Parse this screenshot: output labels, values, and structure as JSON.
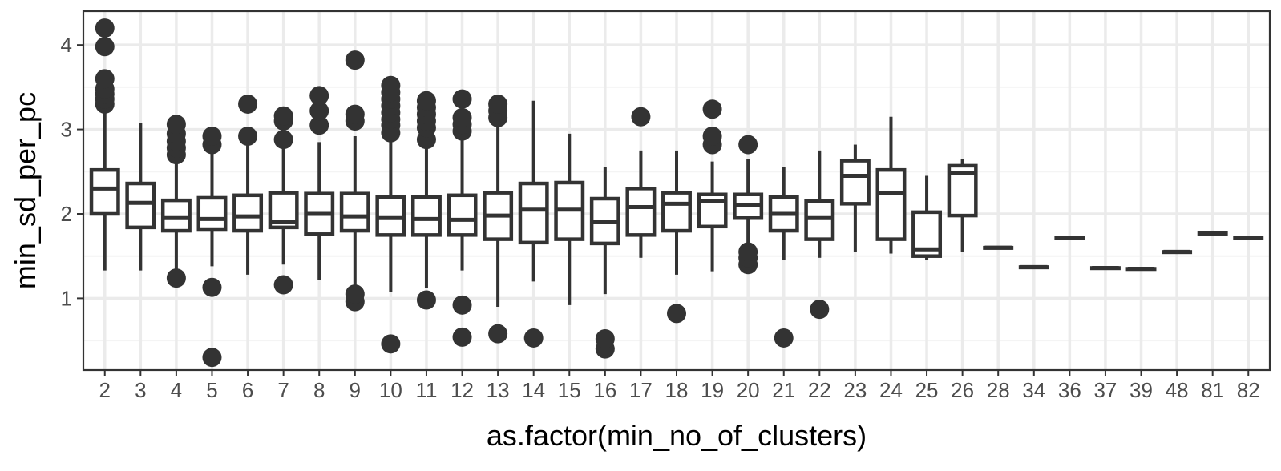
{
  "chart_data": {
    "type": "boxplot",
    "xlabel": "as.factor(min_no_of_clusters)",
    "ylabel": "min_sd_per_pc",
    "ylim": [
      0.15,
      4.4
    ],
    "yticks": [
      1,
      2,
      3,
      4
    ],
    "grid": true,
    "colors": {
      "box": "#333333",
      "fill": "#ffffff",
      "grid_major": "#ebebeb",
      "grid_minor": "#f4f4f4",
      "border": "#333333"
    },
    "categories": [
      "2",
      "3",
      "4",
      "5",
      "6",
      "7",
      "8",
      "9",
      "10",
      "11",
      "12",
      "13",
      "14",
      "15",
      "16",
      "17",
      "18",
      "19",
      "20",
      "21",
      "22",
      "23",
      "24",
      "25",
      "26",
      "28",
      "34",
      "36",
      "37",
      "39",
      "48",
      "81",
      "82"
    ],
    "boxes": [
      {
        "min": 1.33,
        "q1": 2.0,
        "median": 2.3,
        "q3": 2.52,
        "max": 3.28,
        "outliers": [
          3.3,
          3.36,
          3.42,
          3.48,
          3.6,
          3.98,
          4.2
        ]
      },
      {
        "min": 1.33,
        "q1": 1.84,
        "median": 2.13,
        "q3": 2.36,
        "max": 3.08,
        "outliers": []
      },
      {
        "min": 1.3,
        "q1": 1.8,
        "median": 1.95,
        "q3": 2.16,
        "max": 2.65,
        "outliers": [
          1.24,
          2.7,
          2.78,
          2.86,
          2.95,
          3.06
        ]
      },
      {
        "min": 1.38,
        "q1": 1.81,
        "median": 1.94,
        "q3": 2.19,
        "max": 2.72,
        "outliers": [
          0.3,
          1.13,
          2.82,
          2.92
        ]
      },
      {
        "min": 1.28,
        "q1": 1.8,
        "median": 1.97,
        "q3": 2.22,
        "max": 2.85,
        "outliers": [
          2.92,
          3.3
        ]
      },
      {
        "min": 1.4,
        "q1": 1.84,
        "median": 1.9,
        "q3": 2.25,
        "max": 2.8,
        "outliers": [
          1.16,
          2.88,
          3.1,
          3.16
        ]
      },
      {
        "min": 1.22,
        "q1": 1.76,
        "median": 2.0,
        "q3": 2.24,
        "max": 2.85,
        "outliers": [
          3.05,
          3.22,
          3.4
        ]
      },
      {
        "min": 1.15,
        "q1": 1.8,
        "median": 1.97,
        "q3": 2.24,
        "max": 2.92,
        "outliers": [
          0.96,
          1.05,
          3.1,
          3.18,
          3.82
        ]
      },
      {
        "min": 1.08,
        "q1": 1.75,
        "median": 1.95,
        "q3": 2.2,
        "max": 2.9,
        "outliers": [
          0.46,
          2.96,
          3.05,
          3.12,
          3.2,
          3.28,
          3.36,
          3.44,
          3.52
        ]
      },
      {
        "min": 1.12,
        "q1": 1.75,
        "median": 1.94,
        "q3": 2.2,
        "max": 2.82,
        "outliers": [
          0.98,
          2.88,
          3.02,
          3.1,
          3.18,
          3.26,
          3.34
        ]
      },
      {
        "min": 1.33,
        "q1": 1.75,
        "median": 1.93,
        "q3": 2.22,
        "max": 2.9,
        "outliers": [
          0.54,
          0.92,
          2.98,
          3.06,
          3.14,
          3.36
        ]
      },
      {
        "min": 0.9,
        "q1": 1.7,
        "median": 1.98,
        "q3": 2.25,
        "max": 3.05,
        "outliers": [
          0.58,
          3.14,
          3.22,
          3.3
        ]
      },
      {
        "min": 1.2,
        "q1": 1.66,
        "median": 2.05,
        "q3": 2.36,
        "max": 3.34,
        "outliers": [
          0.53
        ]
      },
      {
        "min": 0.92,
        "q1": 1.7,
        "median": 2.05,
        "q3": 2.37,
        "max": 2.95,
        "outliers": []
      },
      {
        "min": 1.05,
        "q1": 1.65,
        "median": 1.9,
        "q3": 2.18,
        "max": 2.55,
        "outliers": [
          0.4,
          0.52
        ]
      },
      {
        "min": 1.48,
        "q1": 1.75,
        "median": 2.08,
        "q3": 2.3,
        "max": 2.75,
        "outliers": [
          3.15
        ]
      },
      {
        "min": 1.28,
        "q1": 1.8,
        "median": 2.12,
        "q3": 2.25,
        "max": 2.75,
        "outliers": [
          0.82
        ]
      },
      {
        "min": 1.32,
        "q1": 1.85,
        "median": 2.15,
        "q3": 2.23,
        "max": 2.62,
        "outliers": [
          2.82,
          2.92,
          3.24
        ]
      },
      {
        "min": 1.55,
        "q1": 1.95,
        "median": 2.1,
        "q3": 2.23,
        "max": 2.65,
        "outliers": [
          1.4,
          1.48,
          1.55,
          2.82
        ]
      },
      {
        "min": 1.45,
        "q1": 1.8,
        "median": 2.0,
        "q3": 2.2,
        "max": 2.55,
        "outliers": [
          0.53
        ]
      },
      {
        "min": 1.48,
        "q1": 1.7,
        "median": 1.95,
        "q3": 2.15,
        "max": 2.75,
        "outliers": [
          0.87
        ]
      },
      {
        "min": 1.55,
        "q1": 2.12,
        "median": 2.45,
        "q3": 2.63,
        "max": 2.82,
        "outliers": []
      },
      {
        "min": 1.53,
        "q1": 1.7,
        "median": 2.25,
        "q3": 2.52,
        "max": 3.15,
        "outliers": []
      },
      {
        "min": 1.45,
        "q1": 1.5,
        "median": 1.58,
        "q3": 2.02,
        "max": 2.45,
        "outliers": []
      },
      {
        "min": 1.55,
        "q1": 1.98,
        "median": 2.48,
        "q3": 2.57,
        "max": 2.65,
        "outliers": []
      },
      {
        "min": 1.6,
        "q1": 1.6,
        "median": 1.6,
        "q3": 1.6,
        "max": 1.6,
        "outliers": []
      },
      {
        "min": 1.37,
        "q1": 1.37,
        "median": 1.37,
        "q3": 1.37,
        "max": 1.37,
        "outliers": []
      },
      {
        "min": 1.72,
        "q1": 1.72,
        "median": 1.72,
        "q3": 1.72,
        "max": 1.72,
        "outliers": []
      },
      {
        "min": 1.36,
        "q1": 1.36,
        "median": 1.36,
        "q3": 1.36,
        "max": 1.36,
        "outliers": []
      },
      {
        "min": 1.35,
        "q1": 1.35,
        "median": 1.35,
        "q3": 1.35,
        "max": 1.35,
        "outliers": []
      },
      {
        "min": 1.55,
        "q1": 1.55,
        "median": 1.55,
        "q3": 1.55,
        "max": 1.55,
        "outliers": []
      },
      {
        "min": 1.77,
        "q1": 1.77,
        "median": 1.77,
        "q3": 1.77,
        "max": 1.77,
        "outliers": []
      },
      {
        "min": 1.72,
        "q1": 1.72,
        "median": 1.72,
        "q3": 1.72,
        "max": 1.72,
        "outliers": []
      }
    ]
  }
}
